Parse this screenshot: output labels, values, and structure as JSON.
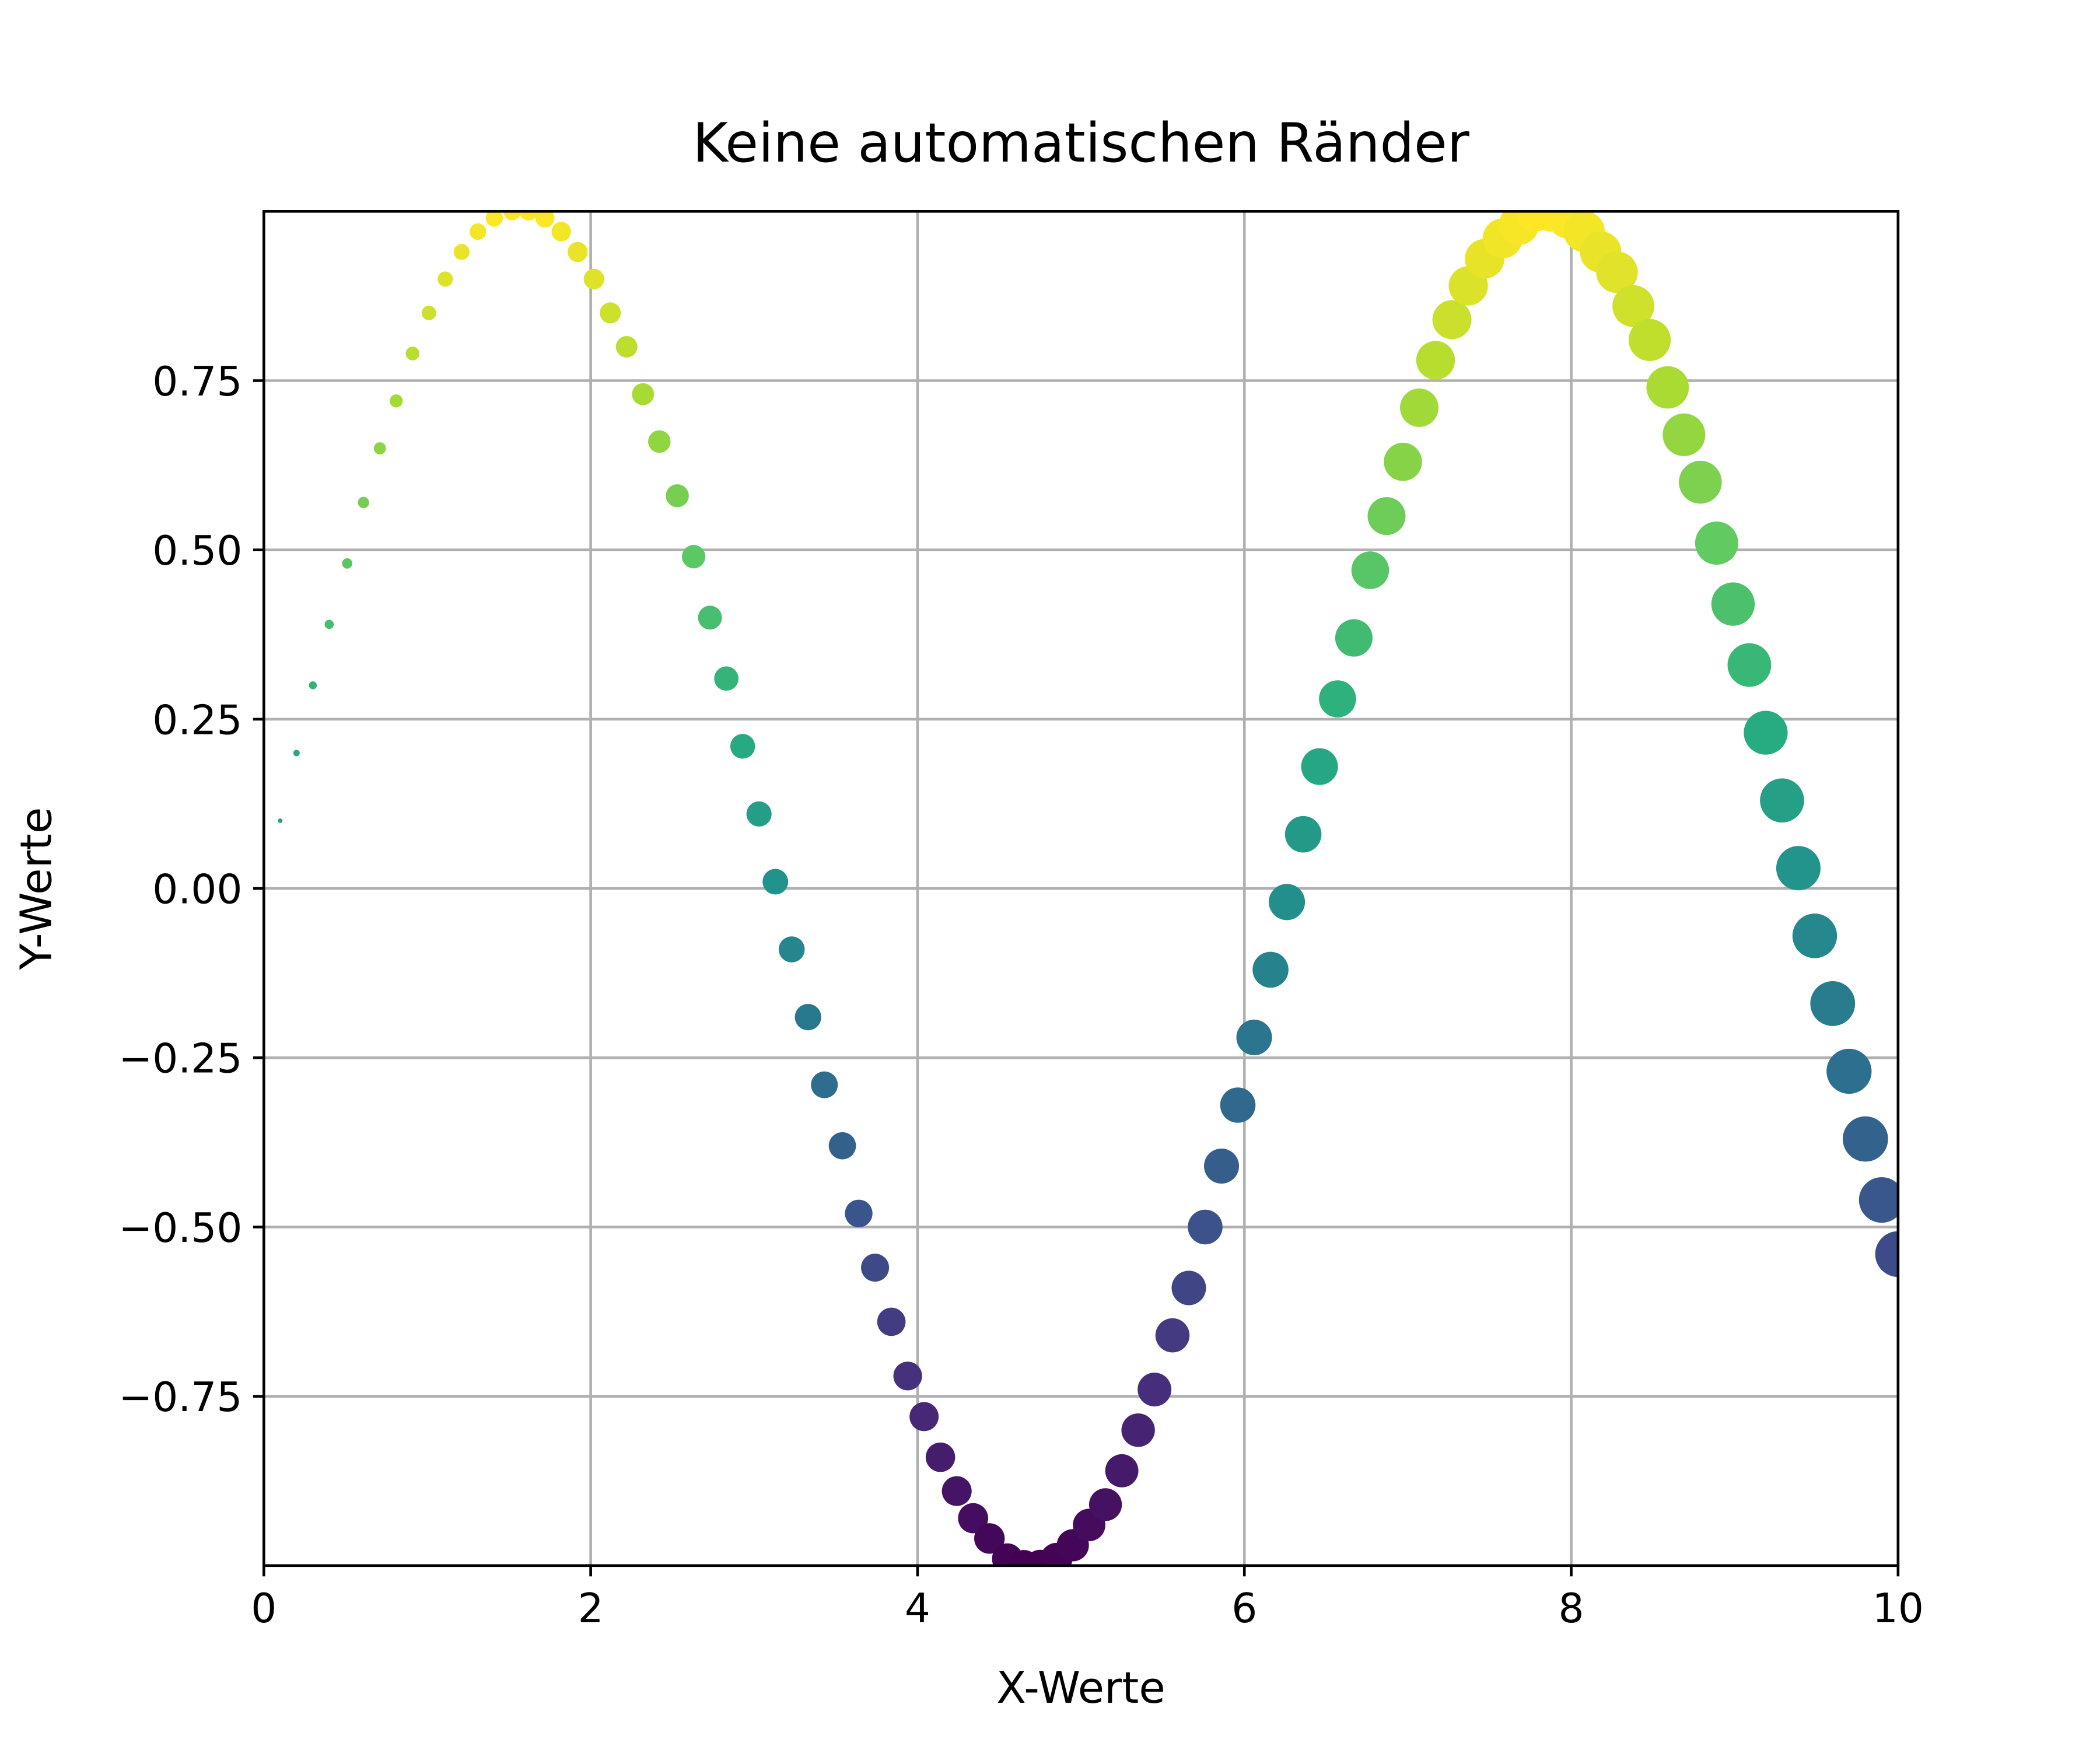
{
  "chart_data": {
    "type": "scatter",
    "title": "Keine automatischen Ränder",
    "xlabel": "X-Werte",
    "ylabel": "Y-Werte",
    "x": [
      0,
      0.1,
      0.2,
      0.3,
      0.4,
      0.51,
      0.61,
      0.71,
      0.81,
      0.91,
      1.01,
      1.11,
      1.21,
      1.31,
      1.41,
      1.52,
      1.62,
      1.72,
      1.82,
      1.92,
      2.02,
      2.12,
      2.22,
      2.32,
      2.42,
      2.53,
      2.63,
      2.73,
      2.83,
      2.93,
      3.03,
      3.13,
      3.23,
      3.33,
      3.43,
      3.54,
      3.64,
      3.74,
      3.84,
      3.94,
      4.04,
      4.14,
      4.24,
      4.34,
      4.44,
      4.55,
      4.65,
      4.75,
      4.85,
      4.95,
      5.05,
      5.15,
      5.25,
      5.35,
      5.45,
      5.56,
      5.66,
      5.76,
      5.86,
      5.96,
      6.06,
      6.16,
      6.26,
      6.36,
      6.46,
      6.57,
      6.67,
      6.77,
      6.87,
      6.97,
      7.07,
      7.17,
      7.27,
      7.37,
      7.47,
      7.58,
      7.68,
      7.78,
      7.88,
      7.98,
      8.08,
      8.18,
      8.28,
      8.38,
      8.48,
      8.59,
      8.69,
      8.79,
      8.89,
      8.99,
      9.09,
      9.19,
      9.29,
      9.39,
      9.49,
      9.6,
      9.7,
      9.8,
      9.9,
      10
    ],
    "values": [
      0,
      0.1,
      0.2,
      0.3,
      0.39,
      0.48,
      0.57,
      0.65,
      0.72,
      0.79,
      0.85,
      0.9,
      0.94,
      0.97,
      0.99,
      1,
      1,
      0.99,
      0.97,
      0.94,
      0.9,
      0.85,
      0.8,
      0.73,
      0.66,
      0.58,
      0.49,
      0.4,
      0.31,
      0.21,
      0.11,
      0.01,
      -0.09,
      -0.19,
      -0.29,
      -0.38,
      -0.48,
      -0.56,
      -0.64,
      -0.72,
      -0.78,
      -0.84,
      -0.89,
      -0.93,
      -0.96,
      -0.99,
      -1,
      -1,
      -0.99,
      -0.97,
      -0.94,
      -0.91,
      -0.86,
      -0.8,
      -0.74,
      -0.66,
      -0.59,
      -0.5,
      -0.41,
      -0.32,
      -0.22,
      -0.12,
      -0.02,
      0.08,
      0.18,
      0.28,
      0.37,
      0.47,
      0.55,
      0.63,
      0.71,
      0.78,
      0.84,
      0.89,
      0.93,
      0.96,
      0.98,
      1,
      1,
      0.99,
      0.97,
      0.94,
      0.91,
      0.86,
      0.81,
      0.74,
      0.67,
      0.6,
      0.51,
      0.42,
      0.33,
      0.23,
      0.13,
      0.03,
      -0.07,
      -0.17,
      -0.27,
      -0.37,
      -0.46,
      -0.54
    ],
    "colormap": "viridis",
    "xlim": [
      0,
      10
    ],
    "xticks": [
      0,
      2,
      4,
      6,
      8,
      10
    ],
    "ylim": [
      -1,
      1
    ],
    "yticks": [
      {
        "value": -0.75,
        "label": "−0.75"
      },
      {
        "value": -0.5,
        "label": "−0.50"
      },
      {
        "value": -0.25,
        "label": "−0.25"
      },
      {
        "value": 0,
        "label": "0.00"
      },
      0.25,
      {
        "value": 0.5,
        "label": "0.50"
      },
      0.75
    ],
    "grid": true
  }
}
